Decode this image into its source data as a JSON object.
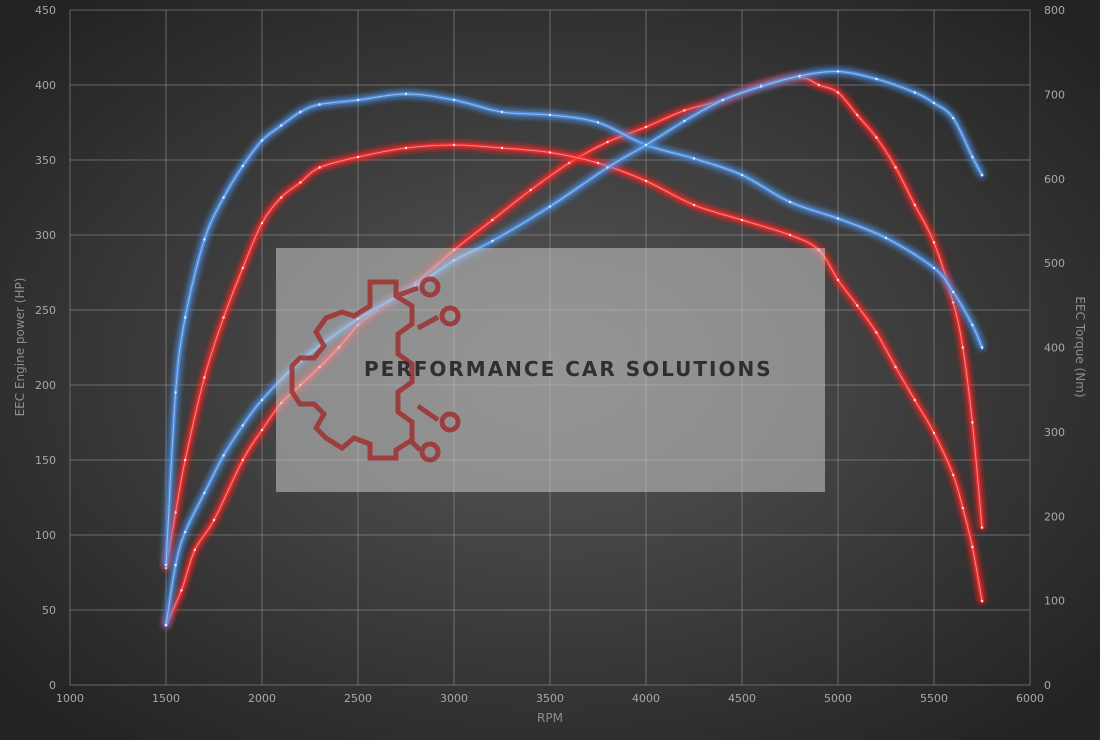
{
  "chart_data": {
    "type": "line",
    "xlabel": "RPM",
    "ylabel_left": "EEC Engine power (HP)",
    "ylabel_right": "EEC Torque (Nm)",
    "xlim": [
      1000,
      6000
    ],
    "ylim_left": [
      0,
      450
    ],
    "ylim_right": [
      0,
      800
    ],
    "x_ticks": [
      1000,
      1500,
      2000,
      2500,
      3000,
      3500,
      4000,
      4500,
      5000,
      5500,
      6000
    ],
    "y_ticks_left": [
      0,
      50,
      100,
      150,
      200,
      250,
      300,
      350,
      400,
      450
    ],
    "y_ticks_right": [
      0,
      100,
      200,
      300,
      400,
      500,
      600,
      700,
      800
    ],
    "grid": true,
    "legend": "none",
    "series": [
      {
        "axis": "left",
        "color": "#ff2a2a",
        "x": [
          1500,
          1580,
          1650,
          1750,
          1900,
          2000,
          2100,
          2200,
          2300,
          2400,
          2500,
          2600,
          2800,
          3000,
          3200,
          3400,
          3600,
          3800,
          4000,
          4200,
          4400,
          4600,
          4800,
          4900,
          5000,
          5100,
          5200,
          5300,
          5400,
          5500,
          5600,
          5650,
          5700,
          5750
        ],
        "y": [
          40,
          63,
          90,
          110,
          150,
          170,
          188,
          200,
          212,
          225,
          240,
          250,
          268,
          290,
          310,
          330,
          348,
          362,
          372,
          383,
          390,
          400,
          405,
          400,
          395,
          380,
          365,
          345,
          320,
          295,
          255,
          225,
          175,
          105
        ]
      },
      {
        "axis": "left",
        "color": "#ff2a2a",
        "x": [
          1500,
          1550,
          1600,
          1700,
          1800,
          1900,
          2000,
          2100,
          2200,
          2300,
          2500,
          2750,
          3000,
          3250,
          3500,
          3750,
          4000,
          4250,
          4500,
          4750,
          4900,
          5000,
          5100,
          5200,
          5300,
          5400,
          5500,
          5600,
          5650,
          5700,
          5750
        ],
        "y": [
          78,
          115,
          150,
          205,
          245,
          278,
          308,
          325,
          335,
          345,
          352,
          358,
          360,
          358,
          355,
          348,
          336,
          320,
          310,
          300,
          290,
          270,
          253,
          235,
          212,
          190,
          168,
          140,
          118,
          92,
          56
        ]
      },
      {
        "axis": "left",
        "color": "#4f93e8",
        "x": [
          1500,
          1550,
          1600,
          1700,
          1800,
          1900,
          2000,
          2100,
          2200,
          2300,
          2500,
          2750,
          3000,
          3250,
          3500,
          3750,
          4000,
          4250,
          4500,
          4750,
          5000,
          5250,
          5500,
          5600,
          5700,
          5750
        ],
        "y": [
          80,
          195,
          245,
          297,
          325,
          346,
          363,
          373,
          382,
          387,
          390,
          394,
          390,
          382,
          380,
          375,
          360,
          351,
          340,
          322,
          311,
          298,
          278,
          262,
          240,
          225
        ]
      },
      {
        "axis": "left",
        "color": "#4f93e8",
        "x": [
          1500,
          1550,
          1600,
          1700,
          1800,
          1900,
          2000,
          2200,
          2500,
          2800,
          3000,
          3200,
          3500,
          3800,
          4000,
          4200,
          4400,
          4600,
          4800,
          5000,
          5200,
          5400,
          5500,
          5600,
          5700,
          5750
        ],
        "y": [
          40,
          80,
          102,
          128,
          153,
          173,
          190,
          216,
          244,
          266,
          283,
          296,
          319,
          345,
          360,
          376,
          390,
          399,
          406,
          409,
          404,
          395,
          388,
          378,
          352,
          340
        ]
      }
    ]
  },
  "watermark": {
    "text": "PERFORMANCE CAR SOLUTIONS",
    "logo": "gear-circuit-logo"
  }
}
